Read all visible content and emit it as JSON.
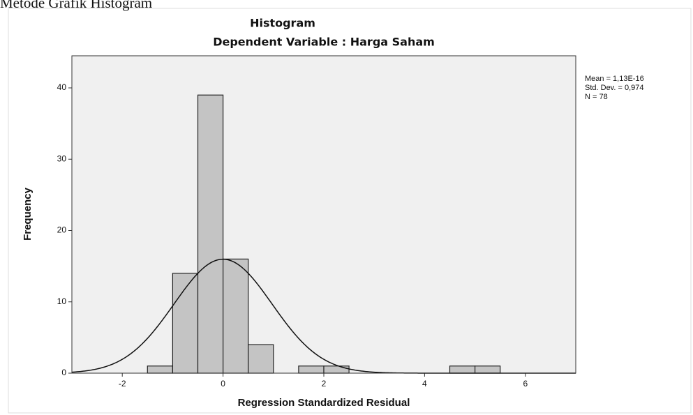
{
  "heading": "Metode Grafik Histogram",
  "chart_data": {
    "type": "histogram",
    "title": "Histogram",
    "subtitle": "Dependent Variable : Harga Saham",
    "xlabel": "Regression Standardized Residual",
    "ylabel": "Frequency",
    "bins": [
      -1.5,
      -1,
      -0.5,
      0,
      0.5,
      1,
      1.5,
      2,
      2.5,
      3,
      3.5,
      4,
      4.5,
      5,
      5.5
    ],
    "values": [
      1,
      14,
      39,
      16,
      4,
      0,
      1,
      1,
      0,
      0,
      0,
      0,
      1,
      1
    ],
    "color": "#c4c4c4",
    "xlim": [
      -3,
      7
    ],
    "xticks": [
      -2,
      0,
      2,
      4,
      6
    ],
    "ylim": [
      0,
      44.5
    ],
    "yticks": [
      0,
      10,
      20,
      30,
      40
    ],
    "stats": {
      "mean": {
        "value": 1.13e-16,
        "label": "Mean = 1,13E-16"
      },
      "sd": {
        "value": 0.974,
        "label": "Std. Dev. = 0,974"
      },
      "n": {
        "value": 78,
        "label": "N = 78"
      }
    }
  }
}
